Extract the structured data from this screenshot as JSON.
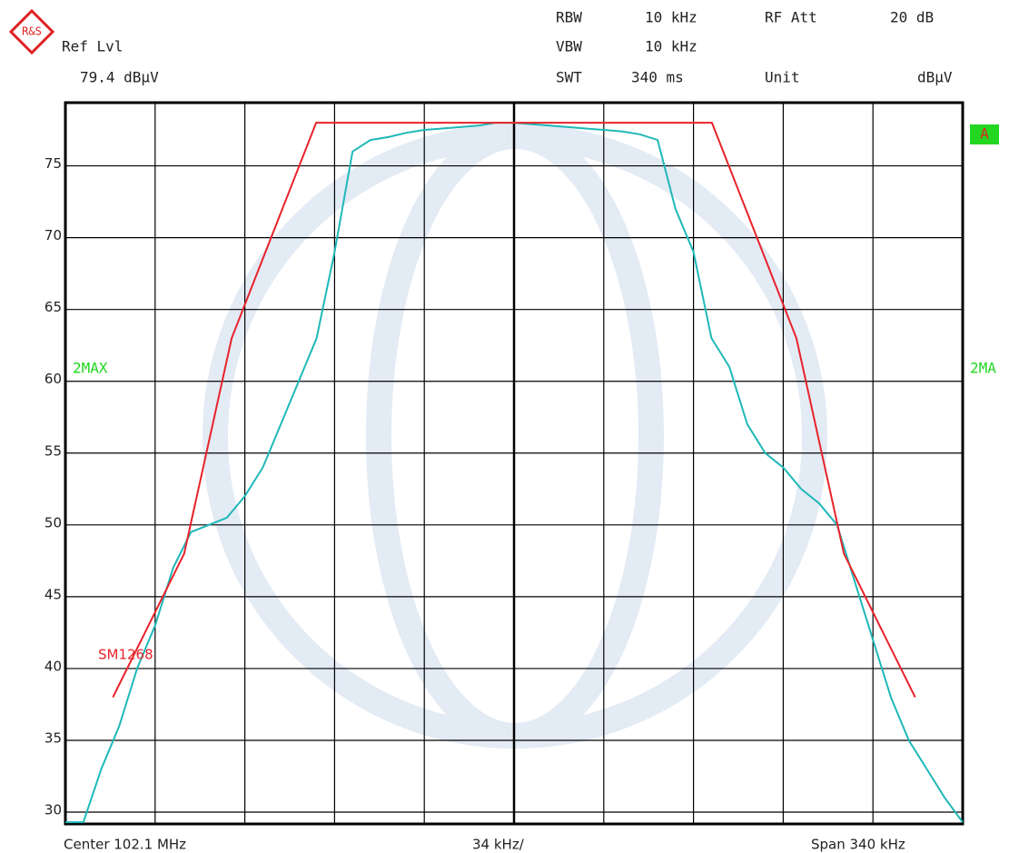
{
  "chart_data": {
    "type": "line",
    "header": {
      "ref_label": "Ref Lvl",
      "ref_value": "79.4 dBμV",
      "rbw_label": "RBW",
      "rbw_value": "10 kHz",
      "rfatt_label": "RF Att",
      "rfatt_value": "20 dB",
      "vbw_label": "VBW",
      "vbw_value": "10 kHz",
      "swt_label": "SWT",
      "swt_value": "340 ms",
      "unit_label": "Unit",
      "unit_value": "dBμV",
      "trace_flag": "A",
      "right_trace_label": "2MA",
      "center": "Center 102.1 MHz",
      "div": "34 kHz/",
      "span": "Span 340 kHz"
    },
    "xlim": [
      -170,
      170
    ],
    "xticks": [
      -170,
      -136,
      -102,
      -68,
      -34,
      0,
      34,
      68,
      102,
      136,
      170
    ],
    "ylim": [
      29.18,
      79.4
    ],
    "yticks": [
      30,
      35,
      40,
      45,
      50,
      55,
      60,
      65,
      70,
      75
    ],
    "grid": true,
    "series": [
      {
        "name": "2MAX",
        "color": "#1fb8b8",
        "x": [
          -170,
          -163.2,
          -156.4,
          -149.6,
          -142.8,
          -136,
          -129.2,
          -122.4,
          -115.6,
          -108.8,
          -102,
          -95.2,
          -88.4,
          -81.6,
          -74.8,
          -68,
          -61.2,
          -54.4,
          -47.6,
          -40.8,
          -34,
          -27.2,
          -20.4,
          -13.6,
          -6.8,
          0,
          6.8,
          13.6,
          20.4,
          27.2,
          34,
          40.8,
          47.6,
          54.4,
          61.2,
          68,
          74.8,
          81.6,
          88.4,
          95.2,
          102,
          108.8,
          115.6,
          122.4,
          129.2,
          136,
          142.8,
          149.6,
          156.4,
          163.2,
          170
        ],
        "values": [
          29.3,
          29.3,
          33,
          36,
          40,
          43,
          47,
          49.5,
          50,
          50.5,
          52,
          54,
          57,
          60,
          63,
          69,
          76,
          76.8,
          77,
          77.3,
          77.5,
          77.6,
          77.7,
          77.8,
          78,
          78,
          77.9,
          77.8,
          77.7,
          77.6,
          77.5,
          77.4,
          77.2,
          76.8,
          72,
          69,
          63,
          61,
          57,
          55,
          54,
          52.5,
          51.5,
          50,
          46,
          42,
          38,
          35,
          33,
          31,
          29.3
        ]
      },
      {
        "name": "SM1268",
        "color": "#e8232a",
        "x": [
          -152,
          -125,
          -107,
          -75,
          75,
          107,
          125,
          152
        ],
        "values": [
          38,
          48,
          63,
          78,
          78,
          63,
          48,
          38
        ]
      }
    ]
  }
}
